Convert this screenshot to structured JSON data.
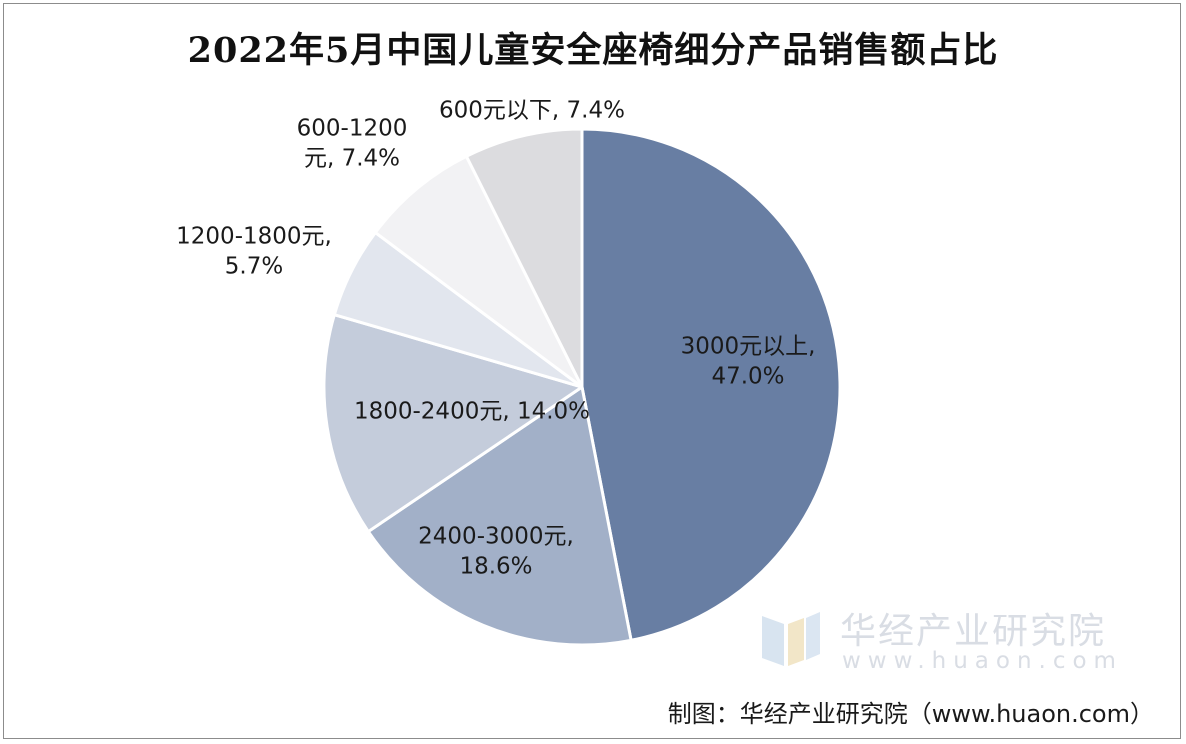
{
  "chart_data": {
    "type": "pie",
    "title": "2022年5月中国儿童安全座椅细分产品销售额占比",
    "slices": [
      {
        "label": "3000元以上",
        "value": 47.0,
        "value_label": "47.0%",
        "color": "#687ea3"
      },
      {
        "label": "2400-3000元",
        "value": 18.6,
        "value_label": "18.6%",
        "color": "#a2b0c8"
      },
      {
        "label": "1800-2400元",
        "value": 14.0,
        "value_label": "14.0%",
        "color": "#c4ccdb"
      },
      {
        "label": "1200-1800元",
        "value": 5.7,
        "value_label": "5.7%",
        "color": "#e2e6ee"
      },
      {
        "label": "600-1200元",
        "value": 7.4,
        "value_label": "7.4%",
        "color": "#f2f2f4"
      },
      {
        "label": "600元以下",
        "value": 7.4,
        "value_label": "7.4%",
        "color": "#dcdcdf"
      }
    ],
    "start_angle_deg": 0,
    "direction": "clockwise",
    "legend": "none"
  },
  "slice_label_lines": [
    [
      "3000元以上,",
      "47.0%"
    ],
    [
      "2400-3000元,",
      "18.6%"
    ],
    [
      "1800-2400元, 14.0%"
    ],
    [
      "1200-1800元,",
      "5.7%"
    ],
    [
      "600-1200",
      "元, 7.4%"
    ],
    [
      "600元以下, 7.4%"
    ]
  ],
  "watermark": {
    "name": "华经产业研究院",
    "url": "www.huaon.com",
    "icon": "huaon-logo-icon"
  },
  "source": "制图：华经产业研究院（www.huaon.com）"
}
